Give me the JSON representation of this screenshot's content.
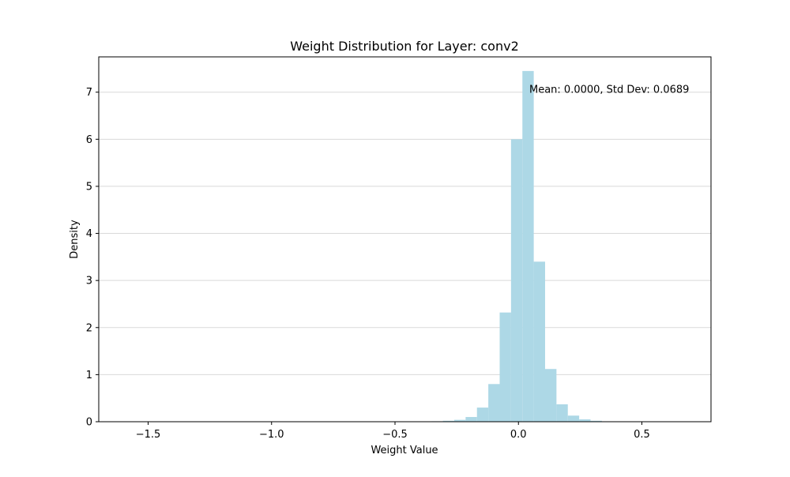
{
  "chart_data": {
    "type": "bar",
    "title": "Weight Distribution for Layer: conv2",
    "xlabel": "Weight Value",
    "ylabel": "Density",
    "xlim": [
      -1.7,
      0.78
    ],
    "ylim": [
      0,
      7.75
    ],
    "xticks": [
      -1.5,
      -1.0,
      -0.5,
      0.0,
      0.5
    ],
    "xtick_labels": [
      "−1.5",
      "−1.0",
      "−0.5",
      "0.0",
      "0.5"
    ],
    "yticks": [
      0,
      1,
      2,
      3,
      4,
      5,
      6,
      7
    ],
    "ytick_labels": [
      "0",
      "1",
      "2",
      "3",
      "4",
      "5",
      "6",
      "7"
    ],
    "grid": "y",
    "bar_color": "#add8e6",
    "bin_width": 0.046,
    "bins": [
      {
        "x0": -0.444,
        "value": 0.003
      },
      {
        "x0": -0.398,
        "value": 0.006
      },
      {
        "x0": -0.352,
        "value": 0.01
      },
      {
        "x0": -0.306,
        "value": 0.02
      },
      {
        "x0": -0.26,
        "value": 0.04
      },
      {
        "x0": -0.214,
        "value": 0.1
      },
      {
        "x0": -0.168,
        "value": 0.3
      },
      {
        "x0": -0.122,
        "value": 0.8
      },
      {
        "x0": -0.076,
        "value": 2.32
      },
      {
        "x0": -0.03,
        "value": 6.0
      },
      {
        "x0": 0.016,
        "value": 7.45
      },
      {
        "x0": 0.062,
        "value": 3.4
      },
      {
        "x0": 0.108,
        "value": 1.12
      },
      {
        "x0": 0.154,
        "value": 0.37
      },
      {
        "x0": 0.2,
        "value": 0.13
      },
      {
        "x0": 0.246,
        "value": 0.05
      },
      {
        "x0": 0.292,
        "value": 0.02
      },
      {
        "x0": 0.338,
        "value": 0.008
      }
    ],
    "annotation": {
      "text": "Mean: 0.0000, Std Dev: 0.0689",
      "x": 0.044,
      "y": 7.05
    }
  }
}
